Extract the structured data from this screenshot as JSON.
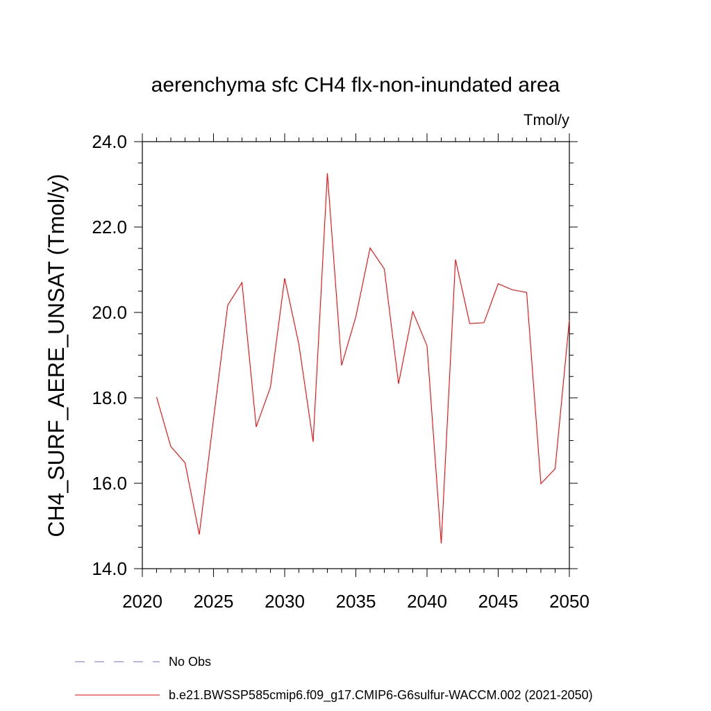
{
  "chart_data": {
    "type": "line",
    "title": "aerenchyma sfc CH4 flx-non-inundated area",
    "units_label": "Tmol/y",
    "ylabel": "CH4_SURF_AERE_UNSAT  (Tmol/y)",
    "xlabel": "",
    "xlim": [
      2020,
      2050
    ],
    "ylim": [
      14.0,
      24.0
    ],
    "x_ticks": [
      2020,
      2025,
      2030,
      2035,
      2040,
      2045,
      2050
    ],
    "y_ticks": [
      14.0,
      16.0,
      18.0,
      20.0,
      22.0,
      24.0
    ],
    "x_tick_labels": [
      "2020",
      "2025",
      "2030",
      "2035",
      "2040",
      "2045",
      "2050"
    ],
    "y_tick_labels": [
      "14.0",
      "16.0",
      "18.0",
      "20.0",
      "22.0",
      "24.0"
    ],
    "grid": false,
    "legend_position": "bottom-left",
    "series": [
      {
        "name": "b.e21.BWSSP585cmip6.f09_g17.CMIP6-G6sulfur-WACCM.002 (2021-2050)",
        "color": "#ff0000",
        "style": "solid",
        "x": [
          2021,
          2022,
          2023,
          2024,
          2025,
          2026,
          2027,
          2028,
          2029,
          2030,
          2031,
          2032,
          2033,
          2034,
          2035,
          2036,
          2037,
          2038,
          2039,
          2040,
          2041,
          2042,
          2043,
          2044,
          2045,
          2046,
          2047,
          2048,
          2049,
          2050
        ],
        "y": [
          18.02,
          16.86,
          16.48,
          14.8,
          17.5,
          20.17,
          20.7,
          17.32,
          18.25,
          20.8,
          19.25,
          16.97,
          23.26,
          18.76,
          19.9,
          21.51,
          21.02,
          18.33,
          20.02,
          19.22,
          14.59,
          21.24,
          19.74,
          19.76,
          20.67,
          20.53,
          20.47,
          15.99,
          16.34,
          19.82
        ]
      },
      {
        "name": "No Obs",
        "color": "#7b68c8",
        "style": "dashed",
        "x": [],
        "y": []
      }
    ]
  }
}
